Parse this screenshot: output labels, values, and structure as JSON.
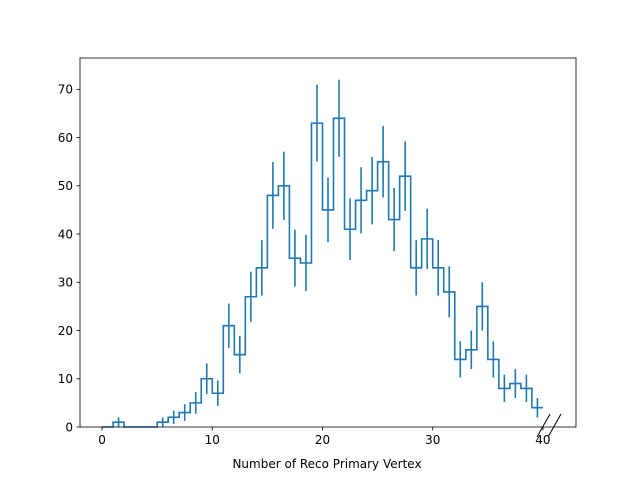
{
  "chart_data": {
    "type": "histogram",
    "title": "",
    "xlabel": "Number of Reco Primary Vertex",
    "ylabel": "",
    "xlim": [
      -2.0,
      43.0
    ],
    "ylim": [
      0,
      76.5
    ],
    "xticks": [
      0,
      10,
      20,
      30,
      40
    ],
    "yticks": [
      0,
      10,
      20,
      30,
      40,
      50,
      60,
      70
    ],
    "grid": false,
    "legend": "none",
    "color": "#1f77b4",
    "bin_width": 1,
    "bin_centers": [
      0.5,
      1.5,
      2.5,
      3.5,
      4.5,
      5.5,
      6.5,
      7.5,
      8.5,
      9.5,
      10.5,
      11.5,
      12.5,
      13.5,
      14.5,
      15.5,
      16.5,
      17.5,
      18.5,
      19.5,
      20.5,
      21.5,
      22.5,
      23.5,
      24.5,
      25.5,
      26.5,
      27.5,
      28.5,
      29.5,
      30.5,
      31.5,
      32.5,
      33.5,
      34.5,
      35.5,
      36.5,
      37.5,
      38.5,
      39.5
    ],
    "counts": [
      0,
      1,
      0,
      0,
      0,
      1,
      2,
      3,
      5,
      10,
      7,
      21,
      15,
      27,
      33,
      48,
      50,
      35,
      34,
      63,
      45,
      64,
      41,
      47,
      49,
      55,
      43,
      52,
      33,
      39,
      33,
      28,
      14,
      16,
      25,
      14,
      8,
      9,
      8,
      4
    ],
    "axis_break": true
  }
}
